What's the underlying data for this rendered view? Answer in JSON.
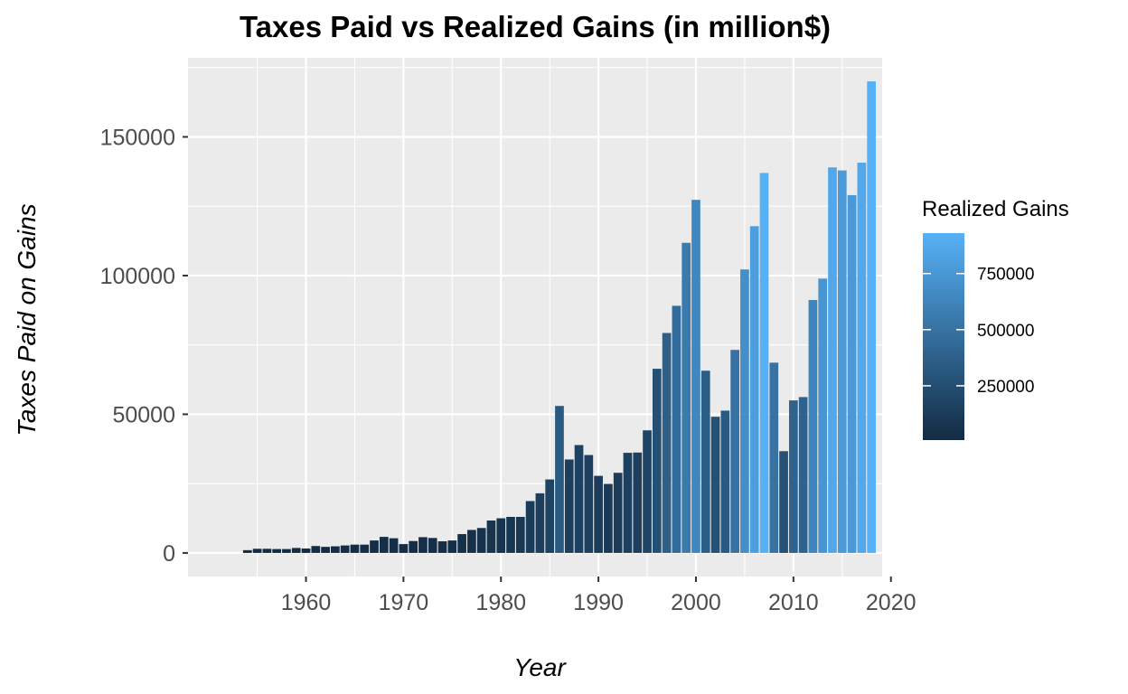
{
  "chart_data": {
    "type": "bar",
    "title": "Taxes Paid vs Realized Gains (in million$)",
    "xlabel": "Year",
    "ylabel": "Taxes Paid on Gains",
    "x_range": [
      1947.9,
      2019.1
    ],
    "ylim": [
      -8500,
      178500
    ],
    "x_ticks": [
      1960,
      1970,
      1980,
      1990,
      2000,
      2010,
      2020
    ],
    "y_ticks": [
      0,
      50000,
      100000,
      150000
    ],
    "grid": true,
    "legend": {
      "title": "Realized Gains",
      "position": "right",
      "range": [
        8000,
        930000
      ],
      "ticks": [
        250000,
        500000,
        750000
      ],
      "colors": [
        "#132B43",
        "#56B1F7"
      ]
    },
    "bar_width": 0.9,
    "series": [
      {
        "x": [
          1954,
          1955,
          1956,
          1957,
          1958,
          1959,
          1960,
          1961,
          1962,
          1963,
          1964,
          1965,
          1966,
          1967,
          1968,
          1969,
          1970,
          1971,
          1972,
          1973,
          1974,
          1975,
          1976,
          1977,
          1978,
          1979,
          1980,
          1981,
          1982,
          1983,
          1984,
          1985,
          1986,
          1987,
          1988,
          1989,
          1990,
          1991,
          1992,
          1993,
          1994,
          1995,
          1996,
          1997,
          1998,
          1999,
          2000,
          2001,
          2002,
          2003,
          2004,
          2005,
          2006,
          2007,
          2008,
          2009,
          2010,
          2011,
          2012,
          2013,
          2014,
          2015,
          2016,
          2017,
          2018
        ],
        "values": [
          1000,
          1500,
          1500,
          1400,
          1400,
          1800,
          1600,
          2500,
          2200,
          2400,
          2700,
          3000,
          3000,
          4500,
          5800,
          5300,
          3200,
          4300,
          5700,
          5400,
          4200,
          4500,
          6800,
          8300,
          9000,
          11700,
          12500,
          13000,
          13000,
          18700,
          21500,
          26500,
          53000,
          33700,
          38900,
          35300,
          27800,
          24900,
          28900,
          36100,
          36200,
          44200,
          66400,
          79300,
          89100,
          111800,
          127300,
          65700,
          49100,
          51300,
          73200,
          102200,
          117800,
          137000,
          68600,
          36700,
          55000,
          56200,
          91200,
          98900,
          139000,
          137900,
          129000,
          140700,
          170000
        ],
        "gains": [
          7200,
          9900,
          9700,
          8900,
          9400,
          12900,
          11700,
          16000,
          14600,
          16300,
          18600,
          21800,
          21300,
          27500,
          35600,
          31400,
          20800,
          28300,
          35900,
          35800,
          30200,
          30900,
          39500,
          45300,
          50500,
          73400,
          74100,
          80900,
          90200,
          122800,
          140500,
          171600,
          327700,
          148400,
          162600,
          154000,
          123800,
          111600,
          126700,
          152300,
          152700,
          180100,
          261000,
          364800,
          455200,
          552600,
          644300,
          349400,
          268600,
          323300,
          499200,
          690000,
          798200,
          924200,
          497800,
          263500,
          394000,
          388000,
          627000,
          740000,
          860000,
          770000,
          760000,
          870000,
          940000
        ]
      }
    ]
  }
}
